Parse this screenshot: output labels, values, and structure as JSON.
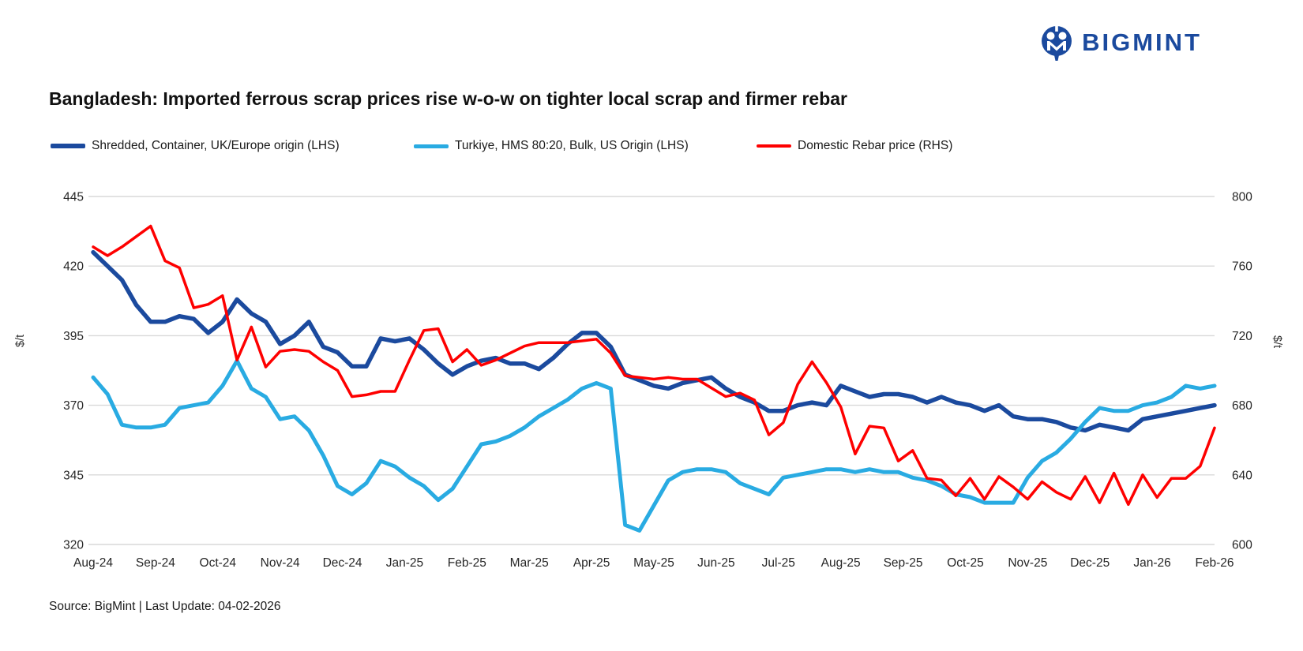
{
  "brand": {
    "logo_text": "BIGMINT"
  },
  "title": "Bangladesh: Imported ferrous scrap prices rise w-o-w on tighter local scrap and firmer rebar",
  "source_note": "Source: BigMint | Last Update: 04-02-2026",
  "colors": {
    "brand_blue": "#1b4a9e",
    "grid": "#d9d9d9",
    "text": "#1a1a1a"
  },
  "chart_data": {
    "type": "line",
    "title": "Bangladesh: Imported ferrous scrap prices rise w-o-w on tighter local scrap and firmer rebar",
    "grid_color": "#d9d9d9",
    "legend_position": "top",
    "x_labels": [
      "Aug-24",
      "Sep-24",
      "Oct-24",
      "Nov-24",
      "Dec-24",
      "Jan-25",
      "Feb-25",
      "Mar-25",
      "Apr-25",
      "May-25",
      "Jun-25",
      "Jul-25",
      "Aug-25",
      "Sep-25",
      "Oct-25",
      "Nov-25",
      "Dec-25",
      "Jan-26",
      "Feb-26"
    ],
    "left_axis": {
      "label": "$/t",
      "min": 320,
      "max": 445,
      "step": 25,
      "ticks": [
        445,
        420,
        395,
        370,
        345,
        320
      ]
    },
    "right_axis": {
      "label": "$/t",
      "min": 600,
      "max": 800,
      "step": 40,
      "ticks": [
        800,
        760,
        720,
        680,
        640,
        600
      ]
    },
    "series": [
      {
        "name": "Shredded, Container, UK/Europe origin (LHS)",
        "axis": "left",
        "color": "#1b4a9e",
        "width": 5.5,
        "values": [
          425,
          420,
          415,
          406,
          400,
          400,
          402,
          401,
          396,
          400,
          408,
          403,
          400,
          392,
          395,
          400,
          391,
          389,
          384,
          384,
          394,
          393,
          394,
          390,
          385,
          381,
          384,
          386,
          387,
          385,
          385,
          383,
          387,
          392,
          396,
          396,
          391,
          381,
          379,
          377,
          376,
          378,
          379,
          380,
          376,
          373,
          371,
          368,
          368,
          370,
          371,
          370,
          377,
          375,
          373,
          374,
          374,
          373,
          371,
          373,
          371,
          370,
          368,
          370,
          366,
          365,
          365,
          364,
          362,
          361,
          363,
          362,
          361,
          365,
          366,
          367,
          368,
          369,
          370
        ]
      },
      {
        "name": "Turkiye, HMS 80:20, Bulk, US Origin (LHS)",
        "axis": "left",
        "color": "#29abe2",
        "width": 5,
        "values": [
          380,
          374,
          363,
          362,
          362,
          363,
          369,
          370,
          371,
          377,
          386,
          376,
          373,
          365,
          366,
          361,
          352,
          341,
          338,
          342,
          350,
          348,
          344,
          341,
          336,
          340,
          348,
          356,
          357,
          359,
          362,
          366,
          369,
          372,
          376,
          378,
          376,
          327,
          325,
          334,
          343,
          346,
          347,
          347,
          346,
          342,
          340,
          338,
          344,
          345,
          346,
          347,
          347,
          346,
          347,
          346,
          346,
          344,
          343,
          341,
          338,
          337,
          335,
          335,
          335,
          344,
          350,
          353,
          358,
          364,
          369,
          368,
          368,
          370,
          371,
          373,
          377,
          376,
          377
        ]
      },
      {
        "name": "Domestic Rebar price (RHS)",
        "axis": "right",
        "color": "#fe0000",
        "width": 3.5,
        "values": [
          771,
          766,
          771,
          777,
          783,
          763,
          759,
          736,
          738,
          743,
          706,
          725,
          702,
          711,
          712,
          711,
          705,
          700,
          685,
          686,
          688,
          688,
          706,
          723,
          724,
          705,
          712,
          703,
          706,
          710,
          714,
          716,
          716,
          716,
          717,
          718,
          710,
          697,
          696,
          695,
          696,
          695,
          695,
          690,
          685,
          687,
          683,
          663,
          670,
          692,
          705,
          693,
          679,
          652,
          668,
          667,
          648,
          654,
          638,
          637,
          628,
          638,
          626,
          639,
          633,
          626,
          636,
          630,
          626,
          639,
          624,
          641,
          623,
          640,
          627,
          638,
          638,
          645,
          667
        ]
      }
    ]
  }
}
